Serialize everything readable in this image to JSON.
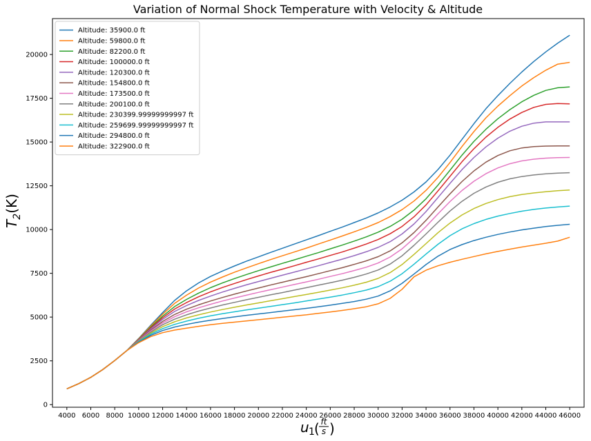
{
  "chart_data": {
    "type": "line",
    "title": "Variation of Normal Shock Temperature with Velocity & Altitude",
    "ylabel": {
      "base": "T",
      "sub": "2",
      "rest": "(K)"
    },
    "xlabel": {
      "base": "u",
      "sub": "1",
      "num": "ft",
      "den": "s"
    },
    "xlim": [
      2800,
      47200
    ],
    "ylim": [
      -150,
      22050
    ],
    "xticks": [
      4000,
      6000,
      8000,
      10000,
      12000,
      14000,
      16000,
      18000,
      20000,
      22000,
      24000,
      26000,
      28000,
      30000,
      32000,
      34000,
      36000,
      38000,
      40000,
      42000,
      44000,
      46000
    ],
    "yticks": [
      0,
      2500,
      5000,
      7500,
      10000,
      12500,
      15000,
      17500,
      20000
    ],
    "grid": false,
    "legend_position": "top-left",
    "x": [
      4000,
      5000,
      6000,
      7000,
      8000,
      9000,
      10000,
      11000,
      12000,
      13000,
      14000,
      15000,
      16000,
      17000,
      18000,
      19000,
      20000,
      21000,
      22000,
      23000,
      24000,
      25000,
      26000,
      27000,
      28000,
      29000,
      30000,
      31000,
      32000,
      33000,
      34000,
      35000,
      36000,
      37000,
      38000,
      39000,
      40000,
      41000,
      42000,
      43000,
      44000,
      45000,
      46000
    ],
    "series": [
      {
        "name": "Altitude: 35900.0 ft",
        "color": "#1f77b4",
        "values": [
          900,
          1200,
          1560,
          2000,
          2520,
          3080,
          3780,
          4530,
          5250,
          5950,
          6500,
          6950,
          7320,
          7630,
          7920,
          8190,
          8440,
          8690,
          8930,
          9170,
          9410,
          9650,
          9900,
          10140,
          10400,
          10660,
          10950,
          11290,
          11680,
          12150,
          12720,
          13430,
          14250,
          15150,
          16050,
          16900,
          17650,
          18350,
          19000,
          19600,
          20150,
          20650,
          21100
        ]
      },
      {
        "name": "Altitude: 59800.0 ft",
        "color": "#ff7f0e",
        "values": [
          900,
          1200,
          1560,
          2000,
          2520,
          3080,
          3760,
          4480,
          5160,
          5780,
          6250,
          6660,
          7000,
          7290,
          7560,
          7810,
          8050,
          8280,
          8500,
          8720,
          8940,
          9170,
          9400,
          9630,
          9870,
          10120,
          10400,
          10740,
          11140,
          11630,
          12240,
          12980,
          13830,
          14740,
          15600,
          16380,
          17050,
          17650,
          18200,
          18680,
          19100,
          19450,
          19550
        ]
      },
      {
        "name": "Altitude: 82200.0 ft",
        "color": "#2ca02c",
        "values": [
          900,
          1200,
          1560,
          2000,
          2520,
          3080,
          3740,
          4420,
          5050,
          5600,
          6010,
          6370,
          6680,
          6950,
          7200,
          7430,
          7650,
          7860,
          8070,
          8270,
          8480,
          8680,
          8900,
          9110,
          9340,
          9580,
          9850,
          10180,
          10590,
          11110,
          11760,
          12540,
          13390,
          14250,
          15040,
          15730,
          16330,
          16850,
          17300,
          17670,
          17950,
          18100,
          18150
        ]
      },
      {
        "name": "Altitude: 100000.0 ft",
        "color": "#d62728",
        "values": [
          900,
          1200,
          1560,
          2000,
          2520,
          3080,
          3720,
          4370,
          4960,
          5460,
          5830,
          6160,
          6440,
          6690,
          6920,
          7140,
          7350,
          7550,
          7740,
          7930,
          8130,
          8320,
          8520,
          8720,
          8940,
          9170,
          9430,
          9760,
          10180,
          10730,
          11410,
          12210,
          13040,
          13870,
          14620,
          15280,
          15840,
          16310,
          16690,
          16980,
          17150,
          17200,
          17180
        ]
      },
      {
        "name": "Altitude: 120300.0 ft",
        "color": "#9467bd",
        "values": [
          900,
          1200,
          1560,
          2000,
          2520,
          3080,
          3700,
          4320,
          4870,
          5320,
          5660,
          5950,
          6200,
          6430,
          6640,
          6840,
          7030,
          7210,
          7390,
          7570,
          7750,
          7930,
          8120,
          8310,
          8510,
          8730,
          8980,
          9310,
          9750,
          10320,
          11030,
          11830,
          12640,
          13420,
          14120,
          14720,
          15220,
          15620,
          15900,
          16080,
          16150,
          16150,
          16150
        ]
      },
      {
        "name": "Altitude: 154800.0 ft",
        "color": "#8c564b",
        "values": [
          900,
          1200,
          1560,
          2000,
          2520,
          3080,
          3680,
          4250,
          4750,
          5150,
          5450,
          5700,
          5920,
          6120,
          6310,
          6490,
          6660,
          6830,
          6990,
          7150,
          7310,
          7480,
          7650,
          7820,
          8010,
          8210,
          8450,
          8780,
          9240,
          9830,
          10530,
          11290,
          12040,
          12740,
          13350,
          13850,
          14230,
          14500,
          14660,
          14740,
          14770,
          14780,
          14780
        ]
      },
      {
        "name": "Altitude: 173500.0 ft",
        "color": "#e377c2",
        "values": [
          900,
          1200,
          1560,
          2000,
          2520,
          3080,
          3660,
          4200,
          4660,
          5020,
          5300,
          5530,
          5730,
          5920,
          6090,
          6250,
          6410,
          6560,
          6710,
          6860,
          7010,
          7160,
          7320,
          7480,
          7660,
          7850,
          8090,
          8430,
          8900,
          9500,
          10180,
          10900,
          11600,
          12230,
          12760,
          13190,
          13520,
          13760,
          13920,
          14020,
          14080,
          14110,
          14120
        ]
      },
      {
        "name": "Altitude: 200100.0 ft",
        "color": "#7f7f7f",
        "values": [
          900,
          1200,
          1560,
          2000,
          2520,
          3080,
          3640,
          4140,
          4560,
          4880,
          5130,
          5340,
          5520,
          5690,
          5840,
          5990,
          6130,
          6270,
          6400,
          6540,
          6680,
          6820,
          6960,
          7110,
          7270,
          7460,
          7690,
          8030,
          8500,
          9100,
          9750,
          10420,
          11060,
          11610,
          12070,
          12430,
          12700,
          12900,
          13030,
          13120,
          13180,
          13220,
          13250
        ]
      },
      {
        "name": "Altitude: 230399.99999999997 ft",
        "color": "#bcbd22",
        "values": [
          900,
          1200,
          1560,
          2000,
          2520,
          3080,
          3620,
          4080,
          4450,
          4730,
          4950,
          5130,
          5290,
          5430,
          5560,
          5690,
          5810,
          5930,
          6050,
          6170,
          6290,
          6410,
          6540,
          6670,
          6820,
          6990,
          7210,
          7540,
          8000,
          8580,
          9200,
          9820,
          10370,
          10830,
          11200,
          11490,
          11710,
          11880,
          12000,
          12090,
          12160,
          12220,
          12260
        ]
      },
      {
        "name": "Altitude: 259699.99999999997 ft",
        "color": "#17becf",
        "values": [
          900,
          1200,
          1560,
          2000,
          2520,
          3080,
          3600,
          4020,
          4340,
          4580,
          4770,
          4930,
          5070,
          5190,
          5300,
          5410,
          5510,
          5610,
          5710,
          5810,
          5920,
          6030,
          6140,
          6260,
          6390,
          6540,
          6740,
          7050,
          7480,
          8020,
          8600,
          9160,
          9650,
          10040,
          10340,
          10580,
          10770,
          10920,
          11050,
          11150,
          11230,
          11290,
          11340
        ]
      },
      {
        "name": "Altitude: 294800.0 ft",
        "color": "#1f77b4",
        "values": [
          900,
          1200,
          1560,
          2000,
          2520,
          3080,
          3570,
          3950,
          4230,
          4430,
          4580,
          4710,
          4820,
          4920,
          5010,
          5100,
          5180,
          5260,
          5340,
          5420,
          5500,
          5590,
          5680,
          5780,
          5890,
          6020,
          6200,
          6500,
          6930,
          7460,
          8000,
          8480,
          8860,
          9140,
          9370,
          9560,
          9720,
          9860,
          9980,
          10080,
          10170,
          10240,
          10300
        ]
      },
      {
        "name": "Altitude: 322900.0 ft",
        "color": "#ff7f0e",
        "values": [
          900,
          1200,
          1560,
          2000,
          2520,
          3080,
          3540,
          3880,
          4110,
          4260,
          4370,
          4470,
          4560,
          4640,
          4710,
          4780,
          4850,
          4920,
          4990,
          5060,
          5130,
          5210,
          5290,
          5380,
          5480,
          5590,
          5760,
          6070,
          6590,
          7300,
          7680,
          7930,
          8130,
          8300,
          8460,
          8610,
          8750,
          8880,
          9000,
          9110,
          9220,
          9340,
          9560
        ]
      }
    ]
  }
}
